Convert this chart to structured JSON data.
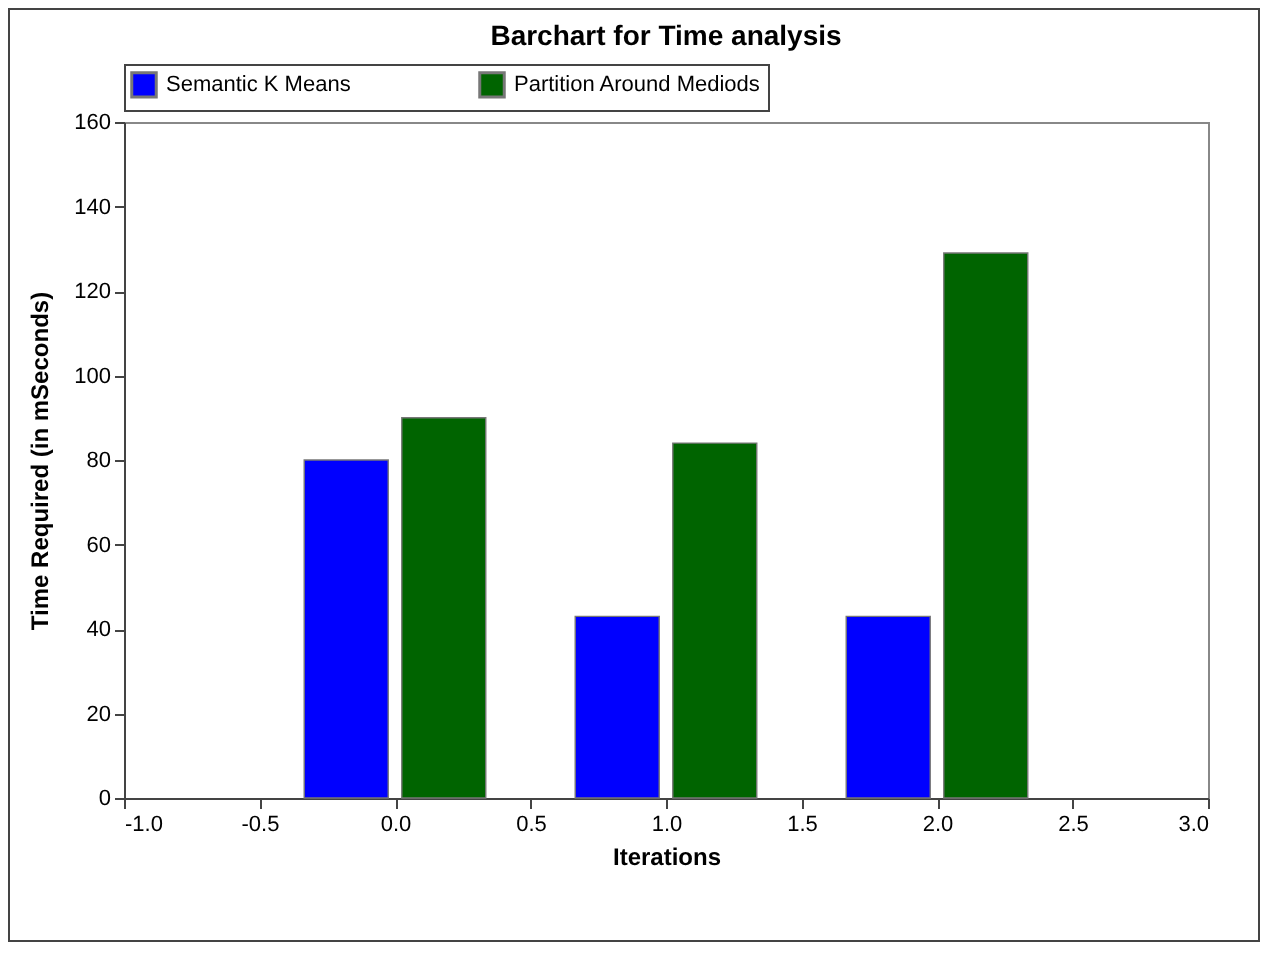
{
  "chart_data": {
    "type": "bar",
    "title": "Barchart for Time analysis",
    "xlabel": "Iterations",
    "ylabel": "Time Required (in mSeconds)",
    "x": [
      0,
      1,
      2
    ],
    "series": [
      {
        "name": "Semantic K Means",
        "color": "#0000ff",
        "values": [
          80,
          43,
          43
        ]
      },
      {
        "name": "Partition Around Mediods",
        "color": "#006400",
        "values": [
          90,
          84,
          129
        ]
      }
    ],
    "xlim": [
      -1,
      3
    ],
    "xticks": [
      {
        "value": -1,
        "label": "-1.0"
      },
      {
        "value": -0.5,
        "label": "-0.5"
      },
      {
        "value": 0,
        "label": "0.0"
      },
      {
        "value": 0.5,
        "label": "0.5"
      },
      {
        "value": 1,
        "label": "1.0"
      },
      {
        "value": 1.5,
        "label": "1.5"
      },
      {
        "value": 2,
        "label": "2.0"
      },
      {
        "value": 2.5,
        "label": "2.5"
      },
      {
        "value": 3,
        "label": "3.0"
      }
    ],
    "ylim": [
      0,
      160
    ],
    "yticks": [
      0,
      20,
      40,
      60,
      80,
      100,
      120,
      140,
      160
    ],
    "legend": "top",
    "grid": false
  }
}
